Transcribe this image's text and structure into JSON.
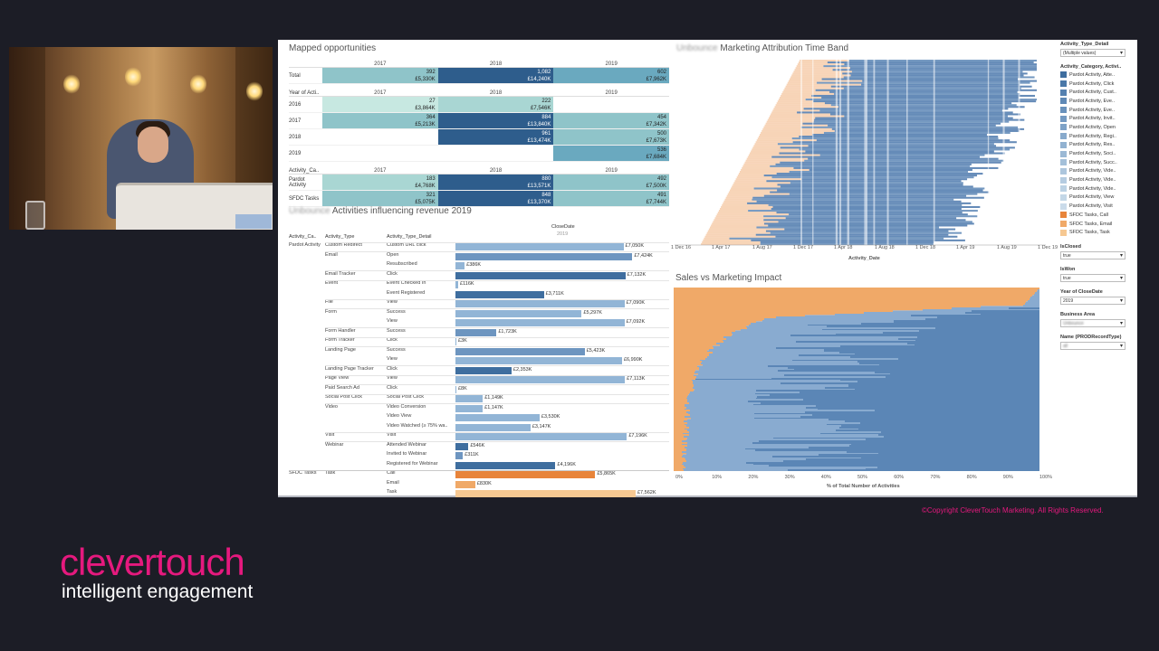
{
  "colors": {
    "pardot": "#4a77ab",
    "sfdc": "#e8843a",
    "brand": "#e5197e"
  },
  "mapped": {
    "title": "Mapped opportunities",
    "years": [
      "2017",
      "2018",
      "2019"
    ],
    "total_label": "Total",
    "total": [
      [
        "392",
        "£5,330K"
      ],
      [
        "1,082",
        "£14,240K"
      ],
      [
        "602",
        "£7,962K"
      ]
    ],
    "section2_label": "Year of Acti..",
    "by_year": [
      {
        "label": "2016",
        "cells": [
          [
            "27",
            "£3,864K"
          ],
          [
            "222",
            "£7,546K"
          ],
          [
            "",
            ""
          ]
        ]
      },
      {
        "label": "2017",
        "cells": [
          [
            "364",
            "£5,213K"
          ],
          [
            "884",
            "£13,840K"
          ],
          [
            "454",
            "£7,342K"
          ]
        ]
      },
      {
        "label": "2018",
        "cells": [
          [
            "",
            ""
          ],
          [
            "961",
            "£13,474K"
          ],
          [
            "500",
            "£7,673K"
          ]
        ]
      },
      {
        "label": "2019",
        "cells": [
          [
            "",
            ""
          ],
          [
            "",
            ""
          ],
          [
            "536",
            "£7,684K"
          ]
        ]
      }
    ],
    "section3_label": "Activity_Ca..",
    "by_cat": [
      {
        "label": "Pardot Activity",
        "cells": [
          [
            "183",
            "£4,768K"
          ],
          [
            "880",
            "£13,571K"
          ],
          [
            "492",
            "£7,500K"
          ]
        ]
      },
      {
        "label": "SFDC Tasks",
        "cells": [
          [
            "321",
            "£5,075K"
          ],
          [
            "848",
            "£13,370K"
          ],
          [
            "491",
            "£7,744K"
          ]
        ]
      }
    ]
  },
  "activities": {
    "title_blur": "Unbounce",
    "title": "Activities influencing revenue 2019",
    "col1": "Activity_Ca..",
    "col2": "Activity_Type",
    "col3": "Activity_Type_Detail",
    "col4": "CloseDate",
    "col4b": "2019",
    "rows": [
      {
        "c1": "Pardot Activity",
        "c2": "Custom Redirect",
        "c3": "Custom URL click",
        "v": 7050,
        "label": "£7,050K",
        "cat": "p",
        "shade": 2
      },
      {
        "c1": "",
        "c2": "Email",
        "c3": "Open",
        "v": 7424,
        "label": "£7,424K",
        "cat": "p",
        "shade": 1
      },
      {
        "c1": "",
        "c2": "",
        "c3": "Resubscribed",
        "v": 386,
        "label": "£386K",
        "cat": "p",
        "shade": 2
      },
      {
        "c1": "",
        "c2": "Email Tracker",
        "c3": "Click",
        "v": 7132,
        "label": "£7,132K",
        "cat": "p",
        "shade": 0
      },
      {
        "c1": "",
        "c2": "Event",
        "c3": "Event Checked In",
        "v": 116,
        "label": "£116K",
        "cat": "p",
        "shade": 2
      },
      {
        "c1": "",
        "c2": "",
        "c3": "Event Registered",
        "v": 3711,
        "label": "£3,711K",
        "cat": "p",
        "shade": 0
      },
      {
        "c1": "",
        "c2": "File",
        "c3": "View",
        "v": 7090,
        "label": "£7,090K",
        "cat": "p",
        "shade": 2
      },
      {
        "c1": "",
        "c2": "Form",
        "c3": "Success",
        "v": 5297,
        "label": "£5,297K",
        "cat": "p",
        "shade": 2
      },
      {
        "c1": "",
        "c2": "",
        "c3": "View",
        "v": 7092,
        "label": "£7,092K",
        "cat": "p",
        "shade": 2
      },
      {
        "c1": "",
        "c2": "Form Handler",
        "c3": "Success",
        "v": 1723,
        "label": "£1,723K",
        "cat": "p",
        "shade": 1
      },
      {
        "c1": "",
        "c2": "Form Tracker",
        "c3": "Click",
        "v": 3,
        "label": "£3K",
        "cat": "p",
        "shade": 2
      },
      {
        "c1": "",
        "c2": "Landing Page",
        "c3": "Success",
        "v": 5423,
        "label": "£5,423K",
        "cat": "p",
        "shade": 1
      },
      {
        "c1": "",
        "c2": "",
        "c3": "View",
        "v": 6990,
        "label": "£6,990K",
        "cat": "p",
        "shade": 2
      },
      {
        "c1": "",
        "c2": "Landing Page Tracker",
        "c3": "Click",
        "v": 2353,
        "label": "£2,353K",
        "cat": "p",
        "shade": 0
      },
      {
        "c1": "",
        "c2": "Page View",
        "c3": "View",
        "v": 7113,
        "label": "£7,113K",
        "cat": "p",
        "shade": 2
      },
      {
        "c1": "",
        "c2": "Paid Search Ad",
        "c3": "Click",
        "v": 8,
        "label": "£8K",
        "cat": "p",
        "shade": 2
      },
      {
        "c1": "",
        "c2": "Social Post Click",
        "c3": "Social Post Click",
        "v": 1149,
        "label": "£1,149K",
        "cat": "p",
        "shade": 2
      },
      {
        "c1": "",
        "c2": "Video",
        "c3": "Video Conversion",
        "v": 1147,
        "label": "£1,147K",
        "cat": "p",
        "shade": 2
      },
      {
        "c1": "",
        "c2": "",
        "c3": "Video View",
        "v": 3530,
        "label": "£3,530K",
        "cat": "p",
        "shade": 2
      },
      {
        "c1": "",
        "c2": "",
        "c3": "Video Watched (≥ 75% wa..",
        "v": 3147,
        "label": "£3,147K",
        "cat": "p",
        "shade": 2
      },
      {
        "c1": "",
        "c2": "Visit",
        "c3": "Visit",
        "v": 7196,
        "label": "£7,196K",
        "cat": "p",
        "shade": 2
      },
      {
        "c1": "",
        "c2": "Webinar",
        "c3": "Attended Webinar",
        "v": 546,
        "label": "£546K",
        "cat": "p",
        "shade": 0
      },
      {
        "c1": "",
        "c2": "",
        "c3": "Invited to Webinar",
        "v": 311,
        "label": "£311K",
        "cat": "p",
        "shade": 1
      },
      {
        "c1": "",
        "c2": "",
        "c3": "Registered for Webinar",
        "v": 4196,
        "label": "£4,196K",
        "cat": "p",
        "shade": 0
      },
      {
        "c1": "SFDC Tasks",
        "c2": "Task",
        "c3": "Call",
        "v": 5865,
        "label": "£5,865K",
        "cat": "s",
        "shade": 0
      },
      {
        "c1": "",
        "c2": "",
        "c3": "Email",
        "v": 830,
        "label": "£830K",
        "cat": "s",
        "shade": 1
      },
      {
        "c1": "",
        "c2": "",
        "c3": "Task",
        "v": 7562,
        "label": "£7,562K",
        "cat": "s",
        "shade": 2
      }
    ]
  },
  "timeband": {
    "title_blur": "Unbounce",
    "title": "Marketing Attribution Time Band",
    "xlabel": "Activity_Date",
    "ticks": [
      "1 Dec 16",
      "1 Apr 17",
      "1 Aug 17",
      "1 Dec 17",
      "1 Apr 18",
      "1 Aug 18",
      "1 Dec 18",
      "1 Apr 19",
      "1 Aug 19",
      "1 Dec 19"
    ]
  },
  "svm": {
    "title": "Sales vs Marketing Impact",
    "xlabel": "% of Total Number of Activities",
    "ticks": [
      "0%",
      "10%",
      "20%",
      "30%",
      "40%",
      "50%",
      "60%",
      "70%",
      "80%",
      "90%",
      "100%"
    ]
  },
  "filters": {
    "f1_label": "Activity_Type_Detail",
    "f1_value": "(Multiple values)",
    "legend_label": "Activity_Category, Activi..",
    "legend": [
      {
        "name": "Pardot Activity, Atte..",
        "color": "#3f6e9f"
      },
      {
        "name": "Pardot Activity, Click",
        "color": "#4a78a8"
      },
      {
        "name": "Pardot Activity, Cust..",
        "color": "#5581b0"
      },
      {
        "name": "Pardot Activity, Eve..",
        "color": "#5f89b6"
      },
      {
        "name": "Pardot Activity, Eve..",
        "color": "#6a92bc"
      },
      {
        "name": "Pardot Activity, Invit..",
        "color": "#749ac2"
      },
      {
        "name": "Pardot Activity, Open",
        "color": "#7ea2c7"
      },
      {
        "name": "Pardot Activity, Regi..",
        "color": "#88aacc"
      },
      {
        "name": "Pardot Activity, Res..",
        "color": "#92b2d1"
      },
      {
        "name": "Pardot Activity, Soci..",
        "color": "#9bb9d5"
      },
      {
        "name": "Pardot Activity, Succ..",
        "color": "#a4c0d9"
      },
      {
        "name": "Pardot Activity, Vide..",
        "color": "#adc6dd"
      },
      {
        "name": "Pardot Activity, Vide..",
        "color": "#b5cce1"
      },
      {
        "name": "Pardot Activity, Vide..",
        "color": "#bcd2e4"
      },
      {
        "name": "Pardot Activity, View",
        "color": "#c3d7e7"
      },
      {
        "name": "Pardot Activity, Visit",
        "color": "#cadbea"
      },
      {
        "name": "SFDC Tasks, Call",
        "color": "#e8843a"
      },
      {
        "name": "SFDC Tasks, Email",
        "color": "#f0a968"
      },
      {
        "name": "SFDC Tasks, Task",
        "color": "#f6c892"
      }
    ],
    "isclosed_label": "IsClosed",
    "isclosed_value": "true",
    "iswon_label": "IsWon",
    "iswon_value": "true",
    "year_label": "Year of CloseDate",
    "year_value": "2019",
    "area_label": "Business Area",
    "area_value": "Unbounce",
    "name_label": "Name (PRODRecordType)",
    "name_value": "all"
  },
  "copyright": "©Copyright CleverTouch Marketing. All Rights Reserved.",
  "logo": {
    "brand": "clevertouch",
    "tag": "intelligent engagement"
  }
}
